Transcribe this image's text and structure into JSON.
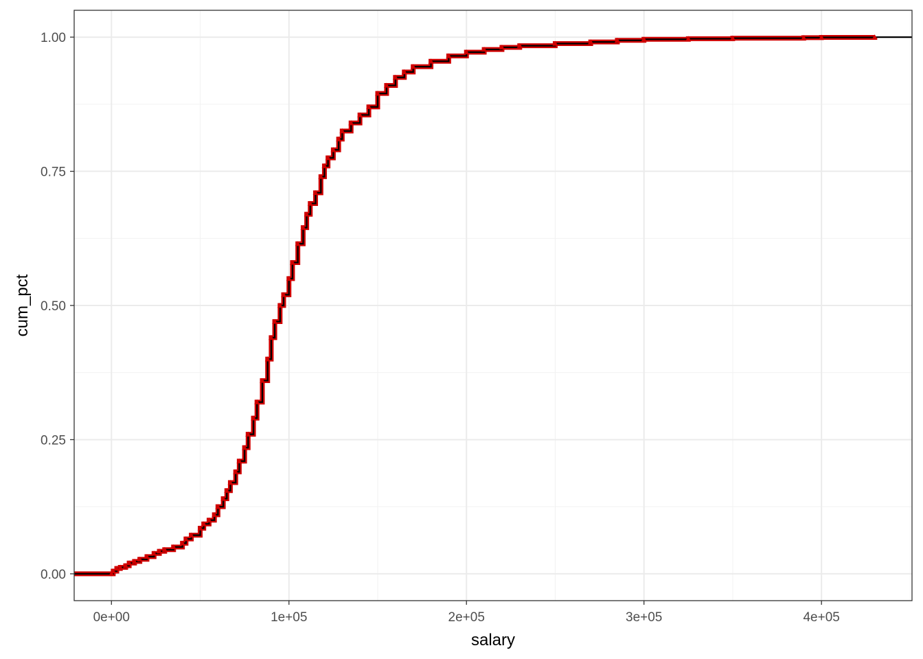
{
  "chart_data": {
    "type": "line",
    "title": "",
    "xlabel": "salary",
    "ylabel": "cum_pct",
    "xlim": [
      -21000,
      451000
    ],
    "ylim": [
      -0.05,
      1.05
    ],
    "x_ticks": [
      {
        "value": 0,
        "label": "0e+00"
      },
      {
        "value": 100000,
        "label": "1e+05"
      },
      {
        "value": 200000,
        "label": "2e+05"
      },
      {
        "value": 300000,
        "label": "3e+05"
      },
      {
        "value": 400000,
        "label": "4e+05"
      }
    ],
    "y_ticks": [
      {
        "value": 0,
        "label": "0.00"
      },
      {
        "value": 0.25,
        "label": "0.25"
      },
      {
        "value": 0.5,
        "label": "0.50"
      },
      {
        "value": 0.75,
        "label": "0.75"
      },
      {
        "value": 1,
        "label": "1.00"
      }
    ],
    "grid": true,
    "legend": "none",
    "colors": {
      "line": "#000000",
      "points": "#d00000",
      "grid": "#ebebeb",
      "panel_border": "#333333"
    },
    "series": [
      {
        "style": "step",
        "x": [
          0,
          1000,
          3000,
          5000,
          8000,
          10000,
          13000,
          16000,
          20000,
          24000,
          27000,
          30000,
          35000,
          40000,
          42000,
          45000,
          50000,
          52000,
          55000,
          58000,
          60000,
          63000,
          65000,
          67000,
          70000,
          72000,
          75000,
          77000,
          80000,
          82000,
          85000,
          88000,
          90000,
          92000,
          95000,
          97000,
          100000,
          102000,
          105000,
          108000,
          110000,
          112000,
          115000,
          118000,
          120000,
          122000,
          125000,
          128000,
          130000,
          135000,
          140000,
          145000,
          150000,
          155000,
          160000,
          165000,
          170000,
          180000,
          190000,
          200000,
          210000,
          220000,
          230000,
          250000,
          270000,
          285000,
          300000,
          325000,
          350000,
          390000,
          400000,
          430000
        ],
        "y": [
          0.0,
          0.005,
          0.01,
          0.012,
          0.015,
          0.02,
          0.023,
          0.027,
          0.032,
          0.038,
          0.042,
          0.045,
          0.05,
          0.057,
          0.065,
          0.072,
          0.085,
          0.093,
          0.1,
          0.11,
          0.125,
          0.14,
          0.155,
          0.17,
          0.19,
          0.21,
          0.235,
          0.26,
          0.29,
          0.32,
          0.36,
          0.4,
          0.44,
          0.47,
          0.5,
          0.52,
          0.55,
          0.58,
          0.615,
          0.645,
          0.67,
          0.69,
          0.71,
          0.74,
          0.76,
          0.775,
          0.79,
          0.81,
          0.825,
          0.84,
          0.855,
          0.87,
          0.895,
          0.91,
          0.925,
          0.935,
          0.945,
          0.955,
          0.965,
          0.972,
          0.977,
          0.981,
          0.984,
          0.988,
          0.991,
          0.994,
          0.996,
          0.997,
          0.998,
          0.999,
          0.9995,
          1.0
        ]
      }
    ]
  }
}
